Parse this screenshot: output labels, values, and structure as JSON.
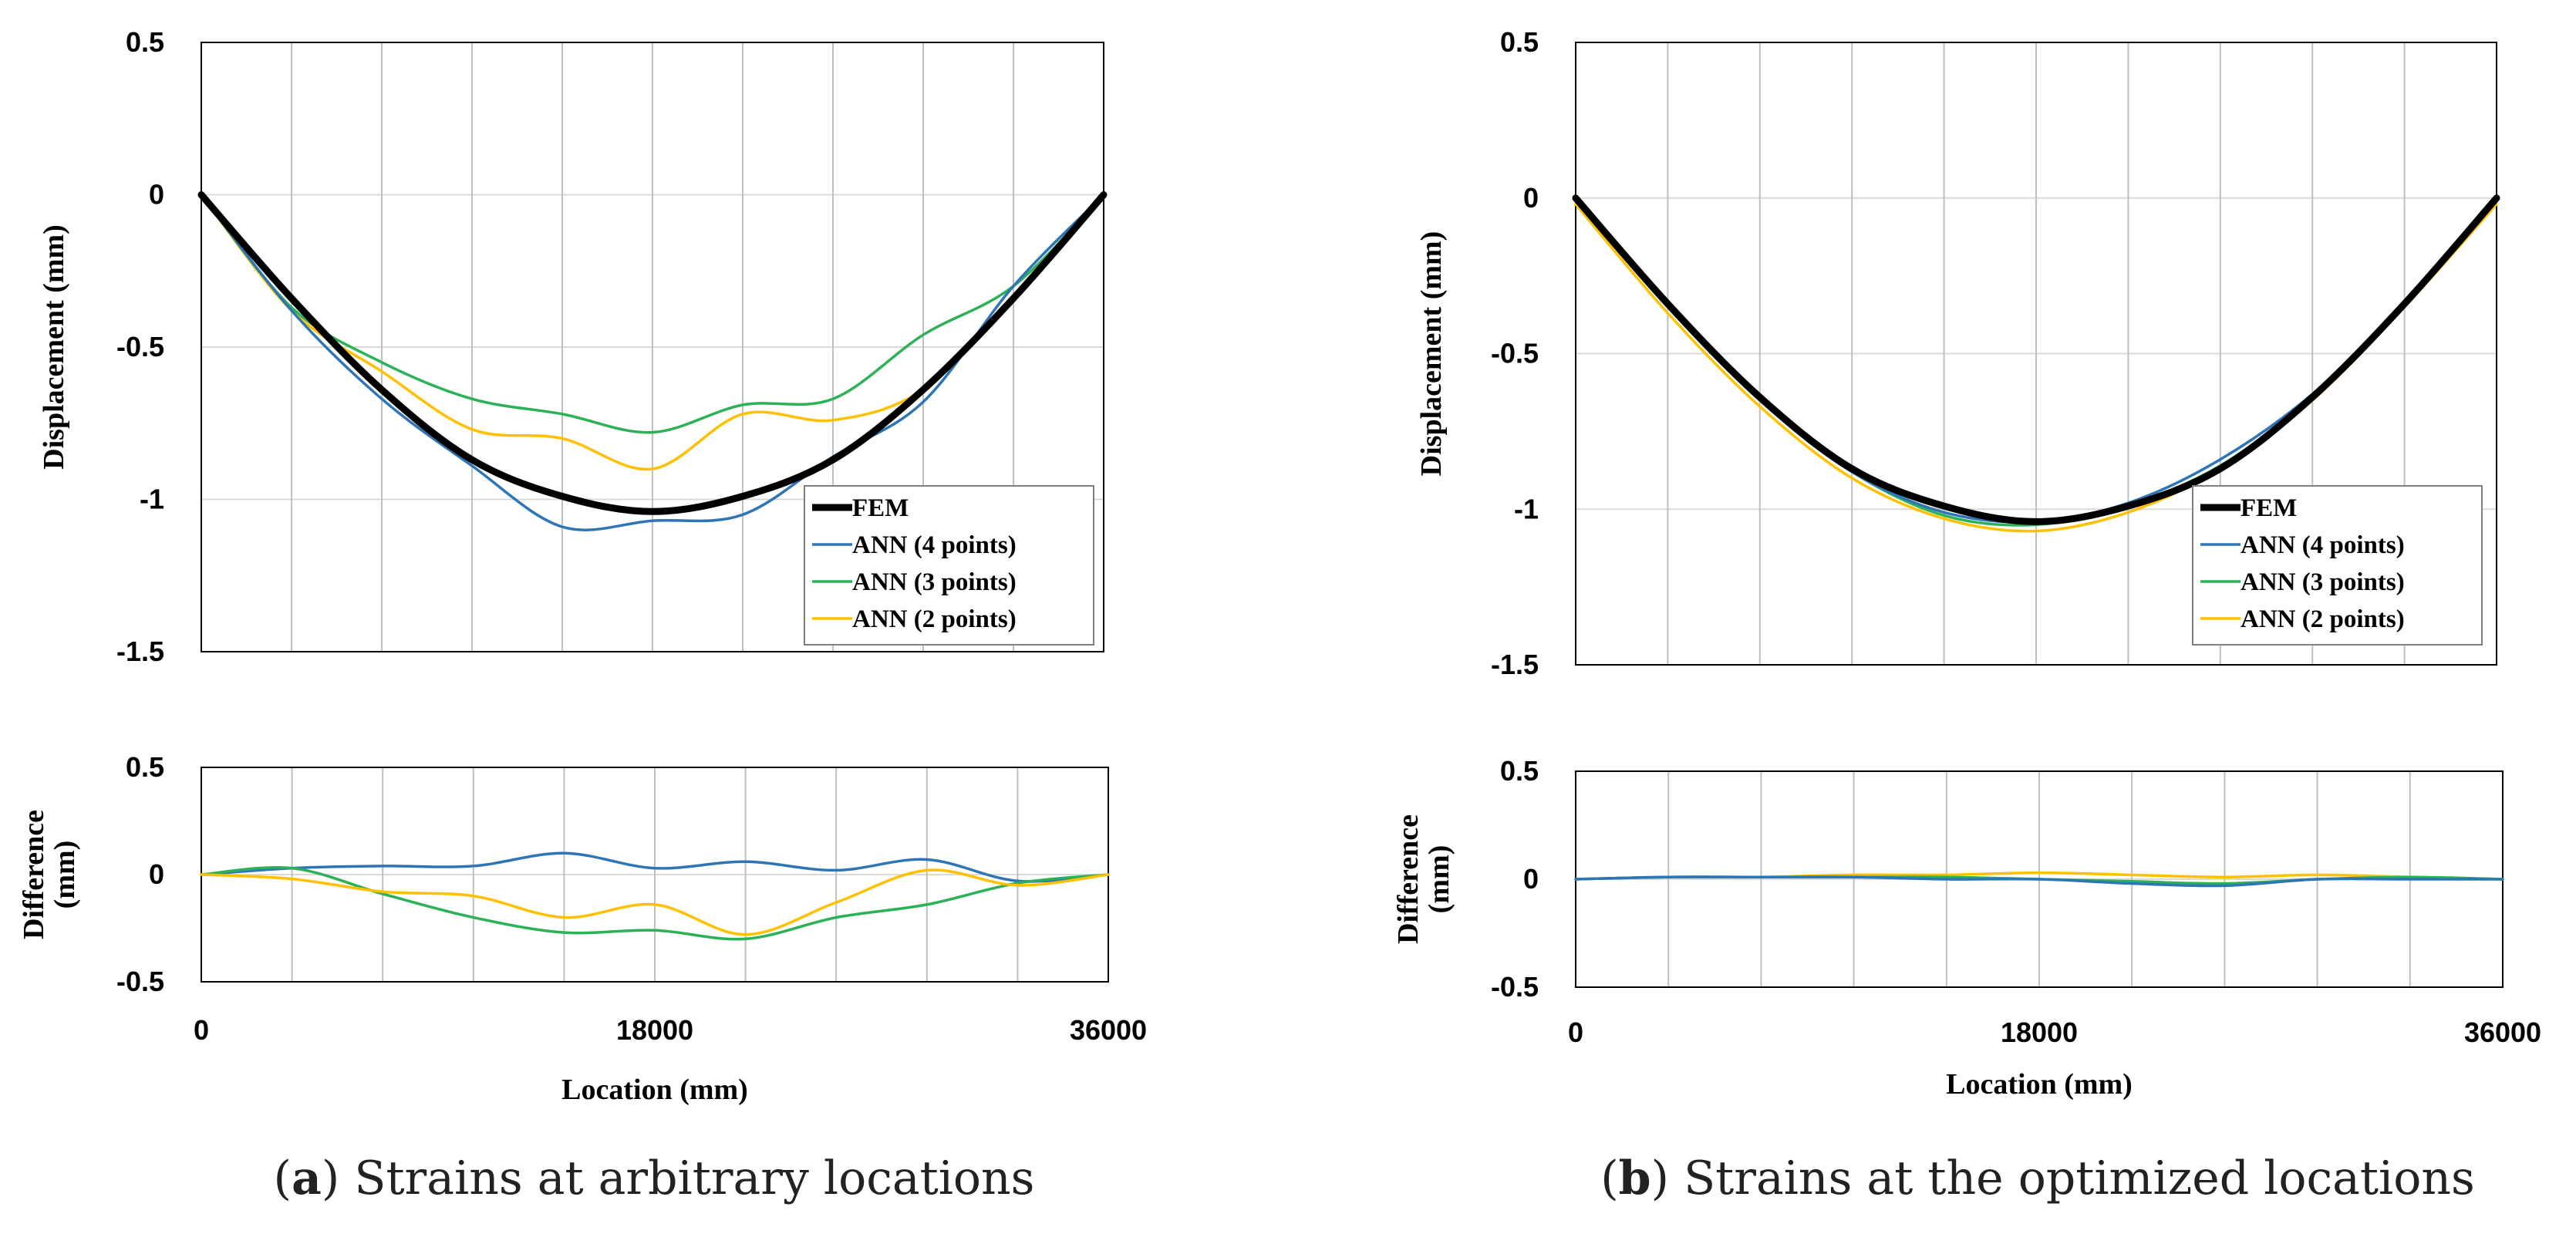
{
  "chart_data": [
    {
      "id": "a",
      "caption": {
        "letter": "a",
        "text": "Strains at arbitrary locations",
        "open": "(",
        "close": ")"
      },
      "xlabel": "Location (mm)",
      "xlim": [
        0,
        36000
      ],
      "xticks": [
        0,
        18000,
        36000
      ],
      "xtick_labels": [
        "0",
        "18000",
        "36000"
      ],
      "colors": {
        "FEM": "#000000",
        "ANN (4 points)": "#2E75B6",
        "ANN (3 points)": "#2DB157",
        "ANN (2 points)": "#FFC000"
      },
      "top": {
        "type": "line",
        "ylabel": "Displacement (mm)",
        "ylim": [
          -1.5,
          0.5
        ],
        "yticks": [
          -1.5,
          -1,
          -0.5,
          0,
          0.5
        ],
        "ytick_labels": [
          "-1.5",
          "-1",
          "-0.5",
          "0",
          "0.5"
        ],
        "legend_position": "bottom-right",
        "series": [
          {
            "name": "ANN (2 points)",
            "x": [
              0,
              3600,
              7200,
              10800,
              14400,
              18000,
              21600,
              25200,
              28800,
              32400,
              36000
            ],
            "y": [
              0,
              -0.38,
              -0.58,
              -0.77,
              -0.8,
              -0.9,
              -0.72,
              -0.74,
              -0.64,
              -0.34,
              0
            ]
          },
          {
            "name": "ANN (3 points)",
            "x": [
              0,
              3600,
              7200,
              10800,
              14400,
              18000,
              21600,
              25200,
              28800,
              32400,
              36000
            ],
            "y": [
              0,
              -0.37,
              -0.55,
              -0.67,
              -0.72,
              -0.78,
              -0.69,
              -0.67,
              -0.46,
              -0.3,
              0
            ]
          },
          {
            "name": "ANN (4 points)",
            "x": [
              0,
              3600,
              7200,
              10800,
              14400,
              18000,
              21600,
              25200,
              28800,
              32400,
              36000
            ],
            "y": [
              0,
              -0.38,
              -0.67,
              -0.89,
              -1.09,
              -1.07,
              -1.05,
              -0.86,
              -0.68,
              -0.3,
              0
            ]
          },
          {
            "name": "FEM",
            "x": [
              0,
              3600,
              7200,
              10800,
              14400,
              18000,
              21600,
              25200,
              28800,
              32400,
              36000
            ],
            "y": [
              0,
              -0.34,
              -0.64,
              -0.87,
              -0.99,
              -1.04,
              -0.99,
              -0.87,
              -0.64,
              -0.34,
              0
            ]
          }
        ]
      },
      "bottom": {
        "type": "line",
        "ylabel": "Difference (mm)",
        "ylim": [
          -0.5,
          0.5
        ],
        "yticks": [
          -0.5,
          0,
          0.5
        ],
        "ytick_labels": [
          "-0.5",
          "0",
          "0.5"
        ],
        "series": [
          {
            "name": "ANN (4 points)",
            "x": [
              0,
              3600,
              7200,
              10800,
              14400,
              18000,
              21600,
              25200,
              28800,
              32400,
              36000
            ],
            "y": [
              0,
              0.03,
              0.04,
              0.04,
              0.1,
              0.03,
              0.06,
              0.02,
              0.07,
              -0.03,
              0
            ]
          },
          {
            "name": "ANN (3 points)",
            "x": [
              0,
              3600,
              7200,
              10800,
              14400,
              18000,
              21600,
              25200,
              28800,
              32400,
              36000
            ],
            "y": [
              0,
              0.03,
              -0.09,
              -0.2,
              -0.27,
              -0.26,
              -0.3,
              -0.2,
              -0.14,
              -0.04,
              0
            ]
          },
          {
            "name": "ANN (2 points)",
            "x": [
              0,
              3600,
              7200,
              10800,
              14400,
              18000,
              21600,
              25200,
              28800,
              32400,
              36000
            ],
            "y": [
              0,
              -0.02,
              -0.08,
              -0.1,
              -0.2,
              -0.14,
              -0.28,
              -0.13,
              0.02,
              -0.05,
              0
            ]
          }
        ]
      }
    },
    {
      "id": "b",
      "caption": {
        "letter": "b",
        "text": "Strains at the optimized locations",
        "open": "(",
        "close": ")"
      },
      "xlabel": "Location (mm)",
      "xlim": [
        0,
        36000
      ],
      "xticks": [
        0,
        18000,
        36000
      ],
      "xtick_labels": [
        "0",
        "18000",
        "36000"
      ],
      "colors": {
        "FEM": "#000000",
        "ANN (4 points)": "#2E75B6",
        "ANN (3 points)": "#2DB157",
        "ANN (2 points)": "#FFC000"
      },
      "top": {
        "type": "line",
        "ylabel": "Displacement (mm)",
        "ylim": [
          -1.5,
          0.5
        ],
        "yticks": [
          -1.5,
          -1,
          -0.5,
          0,
          0.5
        ],
        "ytick_labels": [
          "-1.5",
          "-1",
          "-0.5",
          "0",
          "0.5"
        ],
        "legend_position": "bottom-right",
        "series": [
          {
            "name": "ANN (2 points)",
            "x": [
              0,
              3600,
              7200,
              10800,
              14400,
              18000,
              21600,
              25200,
              28800,
              32400,
              36000
            ],
            "y": [
              -0.02,
              -0.37,
              -0.67,
              -0.9,
              -1.03,
              -1.07,
              -1.01,
              -0.87,
              -0.65,
              -0.35,
              -0.02
            ]
          },
          {
            "name": "ANN (3 points)",
            "x": [
              0,
              3600,
              7200,
              10800,
              14400,
              18000,
              21600,
              25200,
              28800,
              32400,
              36000
            ],
            "y": [
              -0.01,
              -0.35,
              -0.65,
              -0.88,
              -1.02,
              -1.05,
              -0.99,
              -0.86,
              -0.64,
              -0.34,
              -0.01
            ]
          },
          {
            "name": "ANN (4 points)",
            "x": [
              0,
              3600,
              7200,
              10800,
              14400,
              18000,
              21600,
              25200,
              28800,
              32400,
              36000
            ],
            "y": [
              0,
              -0.35,
              -0.65,
              -0.88,
              -1.01,
              -1.04,
              -0.98,
              -0.84,
              -0.63,
              -0.34,
              0
            ]
          },
          {
            "name": "FEM",
            "x": [
              0,
              3600,
              7200,
              10800,
              14400,
              18000,
              21600,
              25200,
              28800,
              32400,
              36000
            ],
            "y": [
              0,
              -0.34,
              -0.64,
              -0.87,
              -0.99,
              -1.04,
              -0.99,
              -0.87,
              -0.64,
              -0.34,
              0
            ]
          }
        ]
      },
      "bottom": {
        "type": "line",
        "ylabel": "Difference (mm)",
        "ylim": [
          -0.5,
          0.5
        ],
        "yticks": [
          -0.5,
          0,
          0.5
        ],
        "ytick_labels": [
          "-0.5",
          "0",
          "0.5"
        ],
        "series": [
          {
            "name": "ANN (2 points)",
            "x": [
              0,
              3600,
              7200,
              10800,
              14400,
              18000,
              21600,
              25200,
              28800,
              32400,
              36000
            ],
            "y": [
              0,
              0.01,
              0.01,
              0.02,
              0.02,
              0.03,
              0.02,
              0.01,
              0.02,
              0.01,
              0
            ]
          },
          {
            "name": "ANN (3 points)",
            "x": [
              0,
              3600,
              7200,
              10800,
              14400,
              18000,
              21600,
              25200,
              28800,
              32400,
              36000
            ],
            "y": [
              0,
              0.01,
              0.01,
              0.01,
              0.01,
              0,
              -0.01,
              -0.02,
              0,
              0.01,
              0
            ]
          },
          {
            "name": "ANN (4 points)",
            "x": [
              0,
              3600,
              7200,
              10800,
              14400,
              18000,
              21600,
              25200,
              28800,
              32400,
              36000
            ],
            "y": [
              0,
              0.01,
              0.01,
              0.01,
              0,
              0,
              -0.02,
              -0.03,
              0,
              0,
              0
            ]
          }
        ]
      }
    }
  ]
}
